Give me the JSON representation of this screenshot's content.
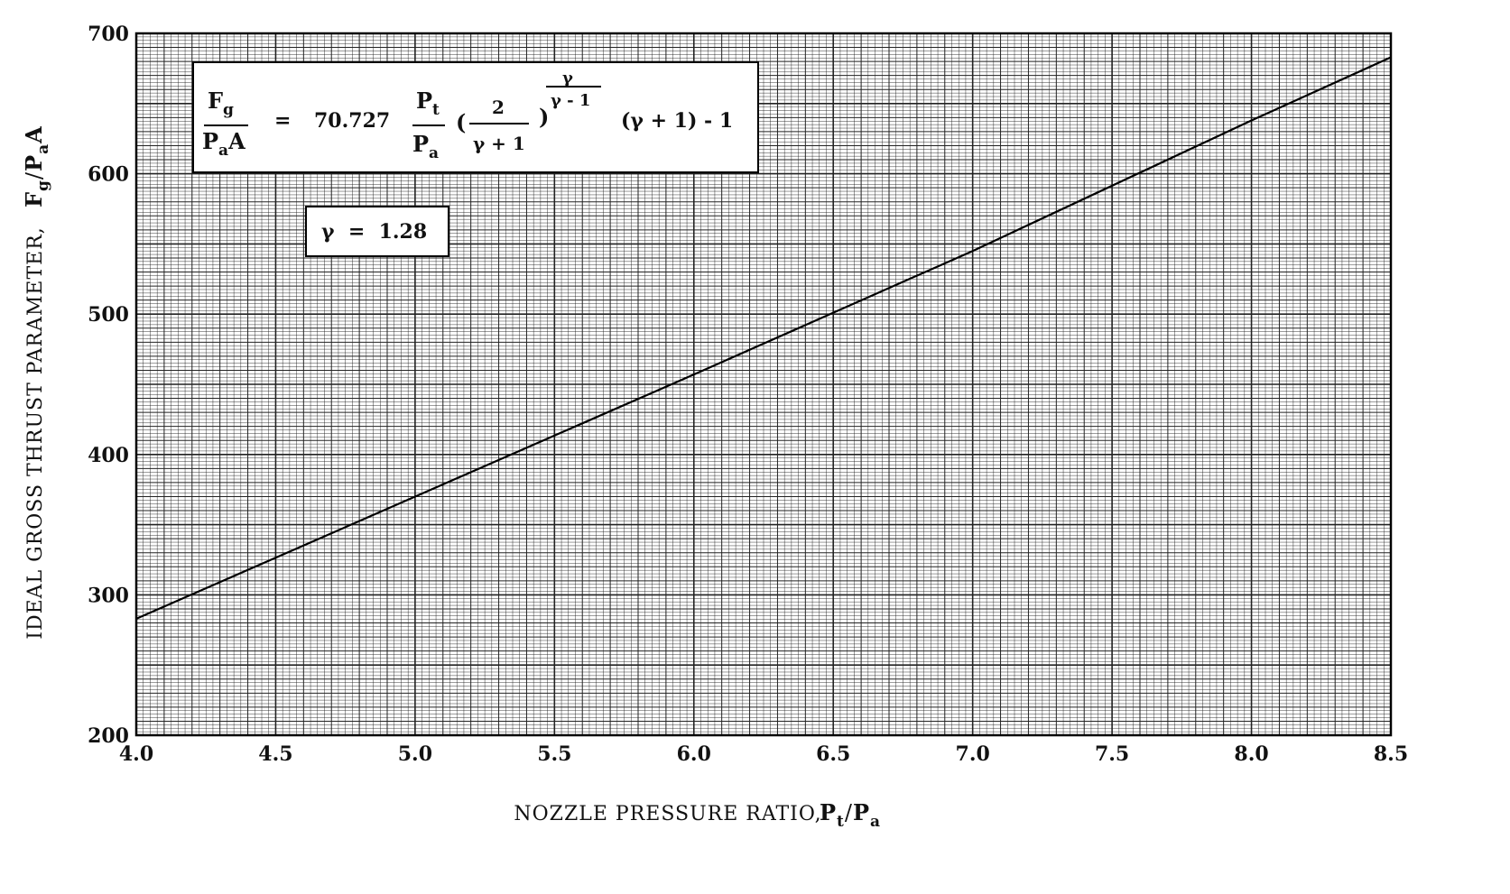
{
  "chart_data": {
    "type": "line",
    "title": "",
    "xlabel": "NOZZLE PRESSURE RATIO,",
    "xlabel_var": {
      "main": "P",
      "sub1": "t",
      "slash": "/",
      "main2": "P",
      "sub2": "a"
    },
    "ylabel": "IDEAL GROSS THRUST PARAMETER,",
    "ylabel_var": {
      "main": "F",
      "sub1": "g",
      "slash": "/",
      "main2": "P",
      "sub2": "a",
      "tail": "A"
    },
    "xlim": [
      4.0,
      8.5
    ],
    "ylim": [
      200,
      700
    ],
    "x_ticks": [
      "4.0",
      "4.5",
      "5.0",
      "5.5",
      "6.0",
      "6.5",
      "7.0",
      "7.5",
      "8.0",
      "8.5"
    ],
    "y_ticks": [
      "200",
      "300",
      "400",
      "500",
      "600",
      "700"
    ],
    "grid": true,
    "series": [
      {
        "x": [
          4.0,
          5.0,
          6.0,
          7.0,
          8.0,
          8.5
        ],
        "y": [
          283,
          370,
          457,
          545,
          638,
          683
        ]
      }
    ],
    "annotations": {
      "equation": {
        "lhs_num": "F",
        "lhs_num_sub": "g",
        "lhs_den": "P",
        "lhs_den_sub": "a",
        "lhs_den_tail": "A",
        "equals": "=",
        "coef": "70.727",
        "ratio_num": "P",
        "ratio_num_sub": "t",
        "ratio_den": "P",
        "ratio_den_sub": "a",
        "paren_open": "(",
        "frac_num": "2",
        "frac_den": "γ + 1",
        "paren_close": ")",
        "exp_num": "γ",
        "exp_den": "γ - 1",
        "tail": "(γ + 1) - 1"
      },
      "gamma": "γ  =  1.28"
    },
    "colors": {
      "grid": "#222222",
      "line": "#000000",
      "background": "#ffffff"
    }
  }
}
